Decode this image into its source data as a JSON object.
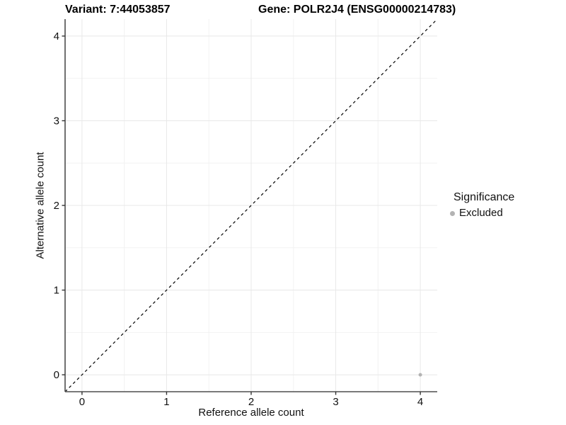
{
  "header": {
    "variant_title": "Variant: 7:44053857",
    "gene_title": "Gene: POLR2J4 (ENSG00000214783)"
  },
  "chart_data": {
    "type": "scatter",
    "title_left": "Variant: 7:44053857",
    "title_right": "Gene: POLR2J4 (ENSG00000214783)",
    "xlabel": "Reference allele count",
    "ylabel": "Alternative allele count",
    "xlim": [
      -0.2,
      4.2
    ],
    "ylim": [
      -0.2,
      4.2
    ],
    "xticks": [
      0,
      1,
      2,
      3,
      4
    ],
    "yticks": [
      0,
      1,
      2,
      3,
      4
    ],
    "minor_xticks": [
      0.5,
      1.5,
      2.5,
      3.5
    ],
    "minor_yticks": [
      0.5,
      1.5,
      2.5,
      3.5
    ],
    "grid": true,
    "identity_line": {
      "style": "dashed",
      "slope": 1,
      "intercept": 0
    },
    "series": [
      {
        "name": "Excluded",
        "color": "#b3b3b3",
        "points": [
          {
            "x": 4,
            "y": 0
          }
        ]
      }
    ],
    "legend": {
      "title": "Significance",
      "position": "right",
      "entries": [
        {
          "label": "Excluded",
          "color": "#b3b3b3"
        }
      ]
    }
  },
  "colors": {
    "background": "#ffffff",
    "grid_major": "#e8e8e8",
    "grid_minor": "#f2f2f2",
    "axis_line": "#4d4d4d",
    "tick_mark": "#333333",
    "dashed_line": "#000000",
    "point": "#b3b3b3"
  }
}
